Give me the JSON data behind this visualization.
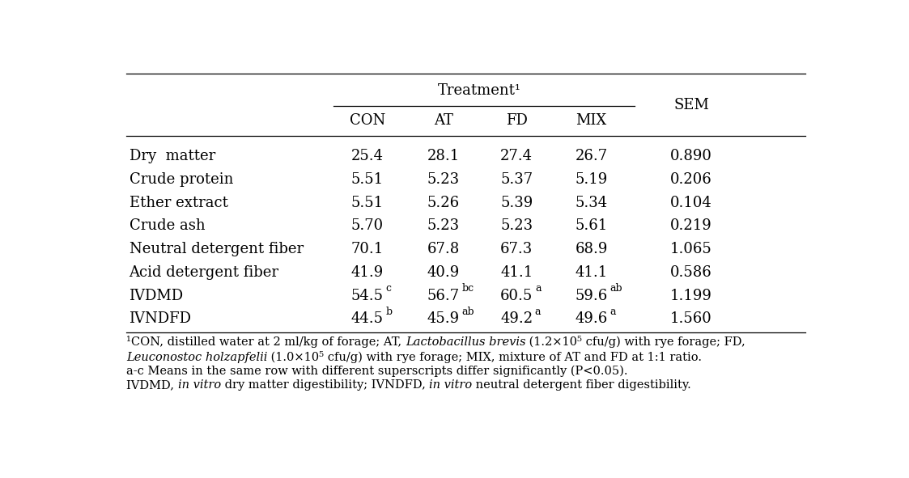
{
  "title": "Treatment¹",
  "col_headers_treatment": [
    "CON",
    "AT",
    "FD",
    "MIX"
  ],
  "sem_header": "SEM",
  "row_labels": [
    "Dry  matter",
    "Crude protein",
    "Ether extract",
    "Crude ash",
    "Neutral detergent fiber",
    "Acid detergent fiber",
    "IVDMD",
    "IVNDFD"
  ],
  "data": [
    [
      "25.4",
      "28.1",
      "27.4",
      "26.7",
      "0.890"
    ],
    [
      "5.51",
      "5.23",
      "5.37",
      "5.19",
      "0.206"
    ],
    [
      "5.51",
      "5.26",
      "5.39",
      "5.34",
      "0.104"
    ],
    [
      "5.70",
      "5.23",
      "5.23",
      "5.61",
      "0.219"
    ],
    [
      "70.1",
      "67.8",
      "67.3",
      "68.9",
      "1.065"
    ],
    [
      "41.9",
      "40.9",
      "41.1",
      "41.1",
      "0.586"
    ],
    [
      "54.5",
      "56.7",
      "60.5",
      "59.6",
      "1.199"
    ],
    [
      "44.5",
      "45.9",
      "49.2",
      "49.6",
      "1.560"
    ]
  ],
  "superscripts": [
    [
      "",
      "",
      "",
      "",
      ""
    ],
    [
      "",
      "",
      "",
      "",
      ""
    ],
    [
      "",
      "",
      "",
      "",
      ""
    ],
    [
      "",
      "",
      "",
      "",
      ""
    ],
    [
      "",
      "",
      "",
      "",
      ""
    ],
    [
      "",
      "",
      "",
      "",
      ""
    ],
    [
      "c",
      "bc",
      "a",
      "ab",
      ""
    ],
    [
      "b",
      "ab",
      "a",
      "a",
      ""
    ]
  ],
  "bg_color": "#ffffff",
  "text_color": "#000000",
  "font_size": 13,
  "footnote_font_size": 10.5
}
